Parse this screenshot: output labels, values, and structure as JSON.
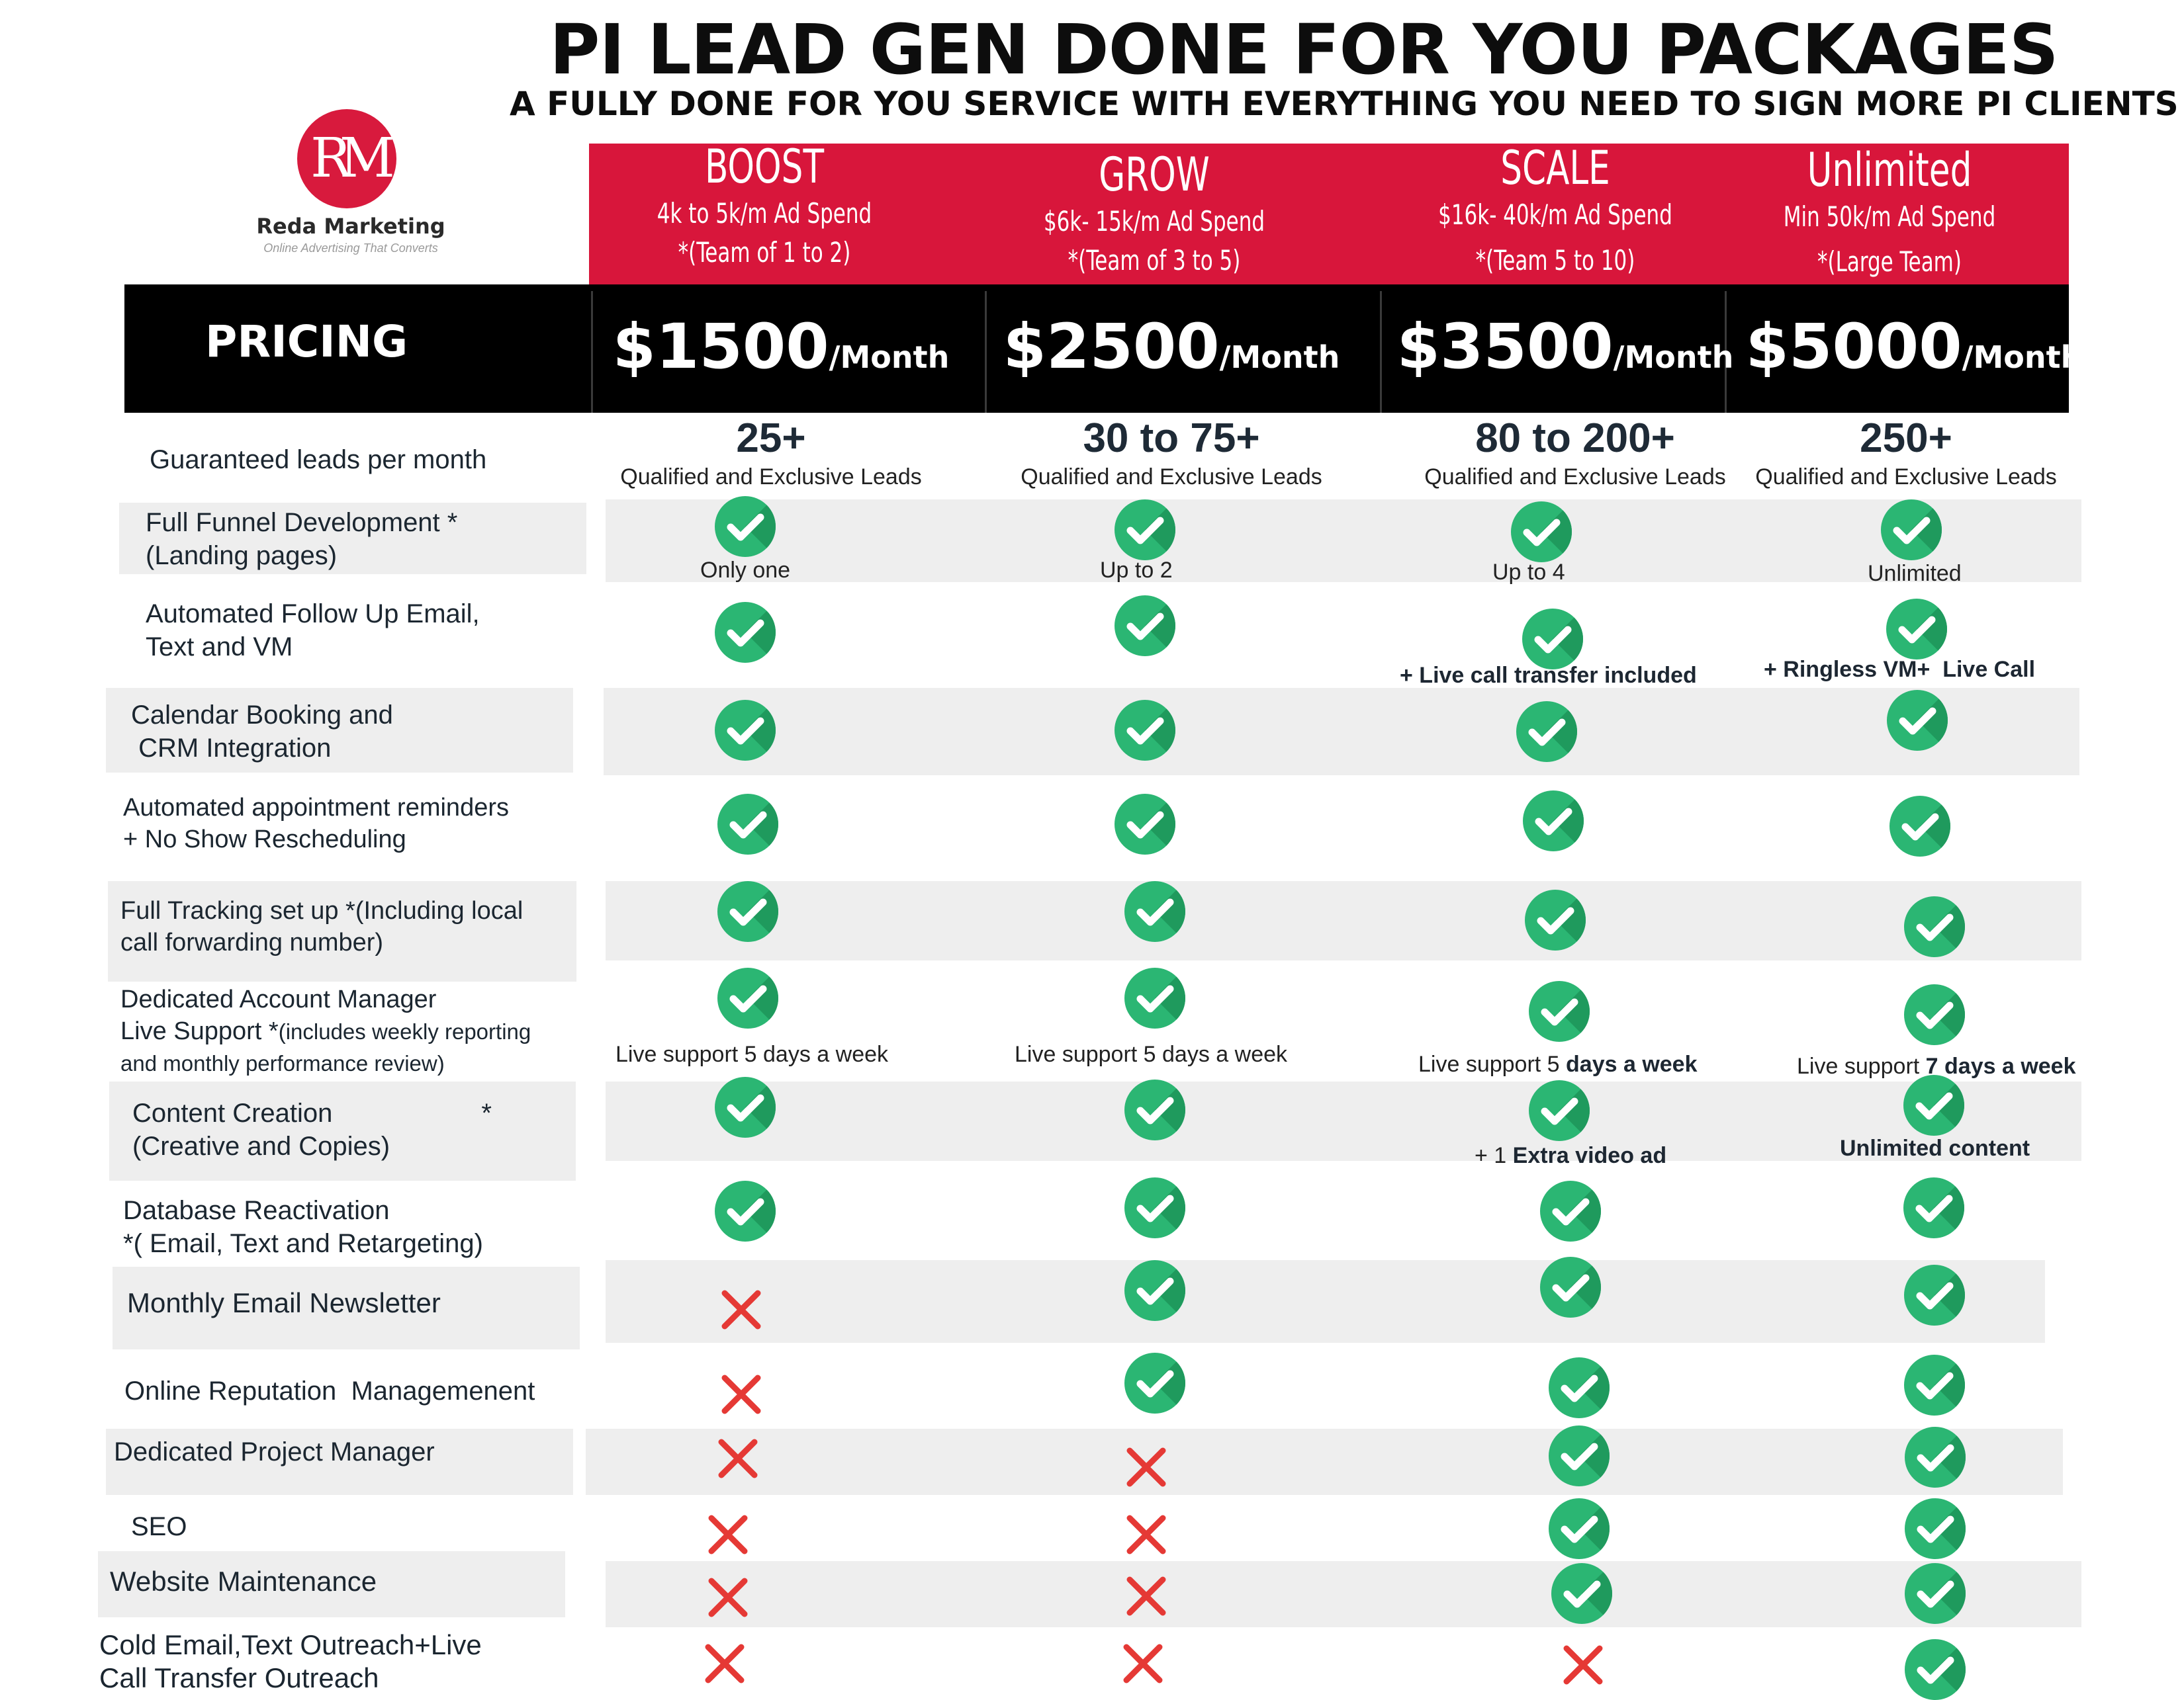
{
  "title": "PI LEAD GEN DONE FOR YOU PACKAGES",
  "subtitle": "A FULLY DONE FOR YOU SERVICE WITH EVERYTHING YOU NEED TO SIGN MORE PI CLIENTS",
  "logo": {
    "mark": "RM",
    "name": "Reda Marketing",
    "tagline": "Online Advertising That Converts"
  },
  "pricing_label": "PRICING",
  "plans": [
    {
      "name": "BOOST",
      "spend": "4k to 5k/m Ad Spend",
      "team": "*(Team of 1 to 2)",
      "price": "$1500",
      "per": "/Month",
      "leads": "25+",
      "leads_desc": "Qualified and Exclusive Leads"
    },
    {
      "name": "GROW",
      "spend": "$6k- 15k/m Ad Spend",
      "team": "*(Team of 3 to 5)",
      "price": "$2500",
      "per": "/Month",
      "leads": "30 to 75+",
      "leads_desc": "Qualified and Exclusive Leads"
    },
    {
      "name": "SCALE",
      "spend": "$16k- 40k/m Ad Spend",
      "team": "*(Team 5 to 10)",
      "price": "$3500",
      "per": "/Month",
      "leads": "80 to 200+",
      "leads_desc": "Qualified and Exclusive Leads"
    },
    {
      "name": "Unlimited",
      "spend": "Min 50k/m Ad Spend",
      "team": "*(Large Team)",
      "price": "$5000",
      "per": "/Month",
      "leads": "250+",
      "leads_desc": "Qualified and Exclusive Leads"
    }
  ],
  "features": {
    "leads": "Guaranteed leads per month",
    "funnel": [
      "Full Funnel Development *",
      "(Landing pages)"
    ],
    "followup": [
      "Automated Follow Up Email,",
      "Text and VM"
    ],
    "calendar": [
      "Calendar Booking and",
      " CRM Integration"
    ],
    "reminders": [
      "Automated appointment reminders",
      "+ No Show Rescheduling"
    ],
    "tracking": [
      "Full Tracking set up *(Including local",
      "call forwarding number)"
    ],
    "manager": [
      "Dedicated Account Manager",
      "Live Support *",
      "(includes weekly reporting",
      "and monthly performance review)"
    ],
    "content": [
      "Content Creation",
      "*",
      "(Creative and Copies)"
    ],
    "database": [
      "Database Reactivation",
      "*( Email, Text and Retargeting)"
    ],
    "newsletter": "Monthly Email Newsletter",
    "reputation": "Online Reputation  Managemenent",
    "project_manager": "Dedicated Project Manager",
    "seo": "SEO",
    "website": "Website Maintenance",
    "cold": [
      "Cold Email,Text Outreach+Live",
      "Call Transfer Outreach"
    ]
  },
  "notes": {
    "funnel": [
      "Only one",
      "Up to 2",
      "Up to 4",
      "Unlimited"
    ],
    "followup_scale": "+ Live call transfer included",
    "followup_unlimited": "+ Ringless VM+  Live Call",
    "support": [
      "Live support 5 days a week",
      "Live support 5 days a week",
      "Live support 5 ",
      "days a week",
      "Live support ",
      "7 days a week"
    ],
    "content_scale": [
      "+ 1 ",
      "Extra video ad"
    ],
    "content_unlimited": "Unlimited content"
  },
  "icons": {
    "check": "check-circle-icon",
    "cross": "cross-icon"
  },
  "colors": {
    "accent_red": "#d8163b",
    "check_green": "#2bb673",
    "cross_red": "#e53935",
    "bar_black": "#000000"
  }
}
